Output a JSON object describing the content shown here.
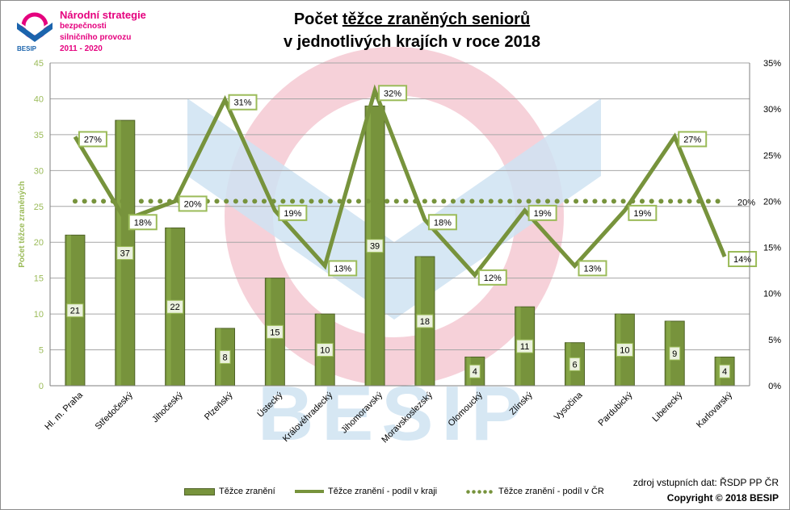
{
  "logo": {
    "line1": "Národní strategie",
    "line2": "bezpečnosti",
    "line3": "silničního provozu",
    "line4": "2011 - 2020",
    "brand": "BESIP"
  },
  "watermark": {
    "text": "BESIP"
  },
  "chart_data": {
    "type": "bar",
    "title_part1": "Počet ",
    "title_underlined": "těžce zraněných seniorů",
    "title_line2": "v jednotlivých krajích v roce 2018",
    "ylabel": "Počet těžce zraněných",
    "ylim": [
      0,
      45
    ],
    "y_ticks": [
      "0",
      "5",
      "10",
      "15",
      "20",
      "25",
      "30",
      "35",
      "40",
      "45"
    ],
    "y2lim": [
      0,
      35
    ],
    "y2_ticks": [
      "0%",
      "5%",
      "10%",
      "15%",
      "20%",
      "25%",
      "30%",
      "35%"
    ],
    "categories": [
      "Hl. m. Praha",
      "Středočeský",
      "Jihočeský",
      "Plzeňský",
      "Ústecký",
      "Královéhradecký",
      "Jihomoravský",
      "Moravskoslezský",
      "Olomoucký",
      "Zlínský",
      "Vysočina",
      "Pardubický",
      "Liberecký",
      "Karlovarský"
    ],
    "series": [
      {
        "name": "Těžce zranění",
        "kind": "bar",
        "axis": "left",
        "values": [
          21,
          37,
          22,
          8,
          15,
          10,
          39,
          18,
          4,
          11,
          6,
          10,
          9,
          4
        ],
        "labels": [
          "21",
          "37",
          "22",
          "8",
          "15",
          "10",
          "39",
          "18",
          "4",
          "11",
          "6",
          "10",
          "9",
          "4"
        ]
      },
      {
        "name": "Těžce zranění - podíl v kraji",
        "kind": "line",
        "axis": "right",
        "values": [
          27,
          18,
          20,
          31,
          19,
          13,
          32,
          18,
          12,
          19,
          13,
          19,
          27,
          14
        ],
        "labels": [
          "27%",
          "18%",
          "20%",
          "31%",
          "19%",
          "13%",
          "32%",
          "18%",
          "12%",
          "19%",
          "13%",
          "19%",
          "27%",
          "14%"
        ]
      },
      {
        "name": "Těžce zranění - podíl v ČR",
        "kind": "dotted",
        "axis": "right",
        "value": 20,
        "label": "20%"
      }
    ],
    "colors": {
      "bar": "#77933c",
      "bar_dark": "#4f6228",
      "line": "#77933c",
      "label_bg": "#ebf1de",
      "grid": "#a6a6a6",
      "axis_label": "#9bbb59"
    },
    "grid": true,
    "legend_position": "bottom"
  },
  "footer": {
    "source": "zdroj vstupních dat: ŘSDP PP ČR",
    "copyright": "Copyright © 2018  BESIP"
  }
}
